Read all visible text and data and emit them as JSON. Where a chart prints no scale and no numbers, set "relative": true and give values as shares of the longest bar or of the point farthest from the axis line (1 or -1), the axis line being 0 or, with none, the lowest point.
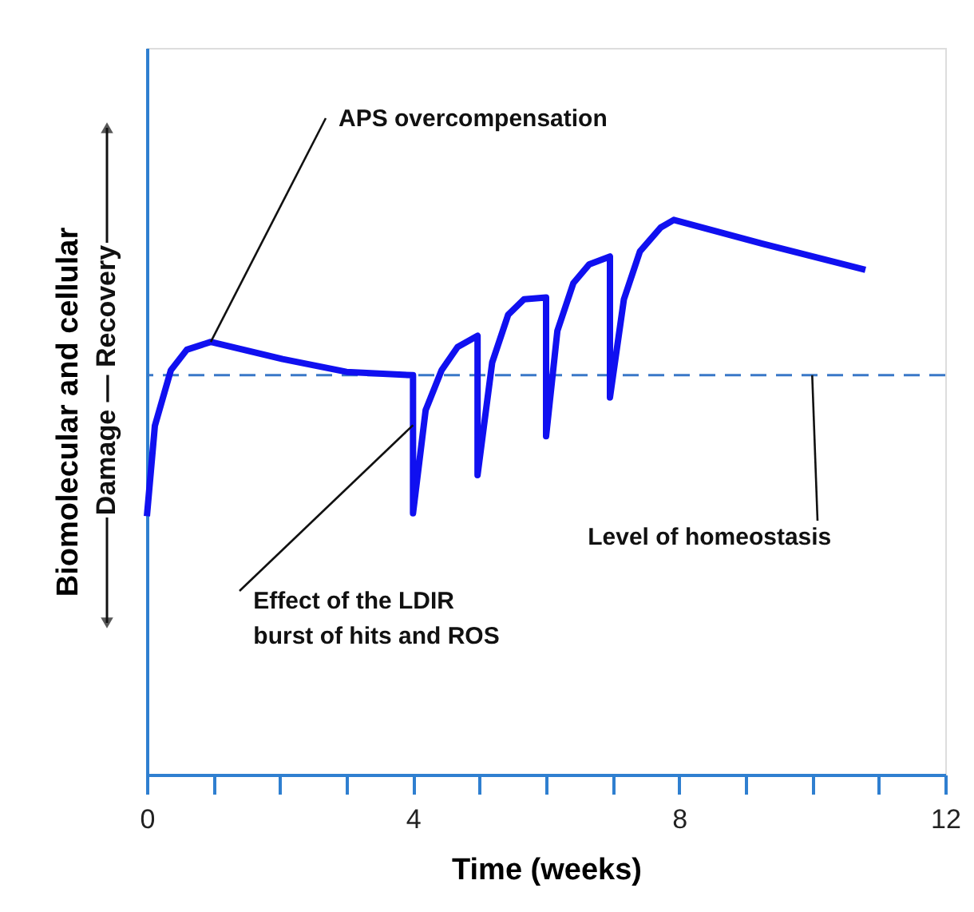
{
  "chart_data": {
    "type": "line",
    "relative": true,
    "xlabel": "Time (weeks)",
    "ylabel": "Biomolecular and cellular",
    "xlim": [
      0,
      12
    ],
    "xticks": [
      0,
      {
        "value": 1,
        "label": null
      },
      {
        "value": 2,
        "label": null
      },
      {
        "value": 3,
        "label": null
      },
      4,
      {
        "value": 5,
        "label": null
      },
      {
        "value": 6,
        "label": null
      },
      {
        "value": 7,
        "label": null
      },
      8,
      {
        "value": 9,
        "label": null
      },
      {
        "value": 10,
        "label": null
      },
      {
        "value": 11,
        "label": null
      },
      12
    ],
    "grid": false,
    "line_style": "solid",
    "marker": "none",
    "series": [
      {
        "color": "#1010f0",
        "x": [
          0,
          0.12,
          0.36,
          0.6,
          0.96,
          2.04,
          3.0,
          4.0,
          4.0,
          4.19,
          4.43,
          4.67,
          4.97,
          4.97,
          5.19,
          5.43,
          5.67,
          6.0,
          6.0,
          6.17,
          6.41,
          6.65,
          6.96,
          6.96,
          7.17,
          7.41,
          7.72,
          7.92,
          9.25,
          10.8
        ],
        "values": [
          0.466,
          0.629,
          0.729,
          0.766,
          0.78,
          0.749,
          0.726,
          0.72,
          0.471,
          0.657,
          0.729,
          0.771,
          0.791,
          0.54,
          0.743,
          0.829,
          0.857,
          0.86,
          0.61,
          0.8,
          0.886,
          0.92,
          0.934,
          0.68,
          0.857,
          0.943,
          0.986,
          1,
          0.957,
          0.91
        ]
      }
    ],
    "ref_lines": [
      {
        "axis": "y",
        "value": 0.72,
        "color": "#3a78c8",
        "line_style": "dashed"
      }
    ],
    "annotations": [
      {
        "text": "APS overcompensation",
        "x": 0.96,
        "y": 0.78
      },
      {
        "text": "Effect of the LDIR\nburst of hits and ROS",
        "x": 4.0,
        "y": 0.63
      },
      {
        "text": "Level of homeostasis",
        "x": 10.0,
        "y": 0.72
      },
      "Damage — Recovery"
    ]
  }
}
